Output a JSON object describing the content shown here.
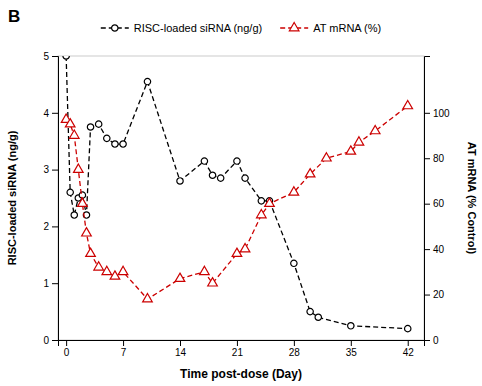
{
  "chart_data": {
    "type": "line",
    "annotations": [
      "B"
    ],
    "xlabel": "Time post-dose (Day)",
    "ylabel": "RISC-loaded siRNA (ng/g)",
    "y2label": "AT mRNA (% Control)",
    "xlim": [
      -1,
      44
    ],
    "ylim": [
      0,
      5
    ],
    "y2lim": [
      0,
      125
    ],
    "xticks": [
      0,
      7,
      14,
      21,
      28,
      35,
      42
    ],
    "yticks": [
      0,
      1,
      2,
      3,
      4,
      5
    ],
    "y2ticks": [
      0,
      20,
      40,
      60,
      80,
      100
    ],
    "grid": false,
    "legend": "top",
    "series": [
      {
        "name": "RISC-loaded siRNA (ng/g)",
        "color": "#000000",
        "marker": "circle",
        "line_style": "dashed",
        "x": [
          0,
          0.5,
          1,
          1.5,
          2,
          2.5,
          3,
          4,
          5,
          6,
          7,
          10,
          14,
          17,
          18,
          19,
          21,
          22,
          24,
          25,
          28,
          30,
          31,
          35,
          42
        ],
        "values": [
          5.0,
          2.6,
          2.2,
          2.5,
          2.55,
          2.2,
          3.75,
          3.8,
          3.55,
          3.45,
          3.45,
          4.55,
          2.8,
          3.15,
          2.9,
          2.85,
          3.15,
          2.85,
          2.45,
          2.45,
          1.35,
          0.5,
          0.4,
          0.25,
          0.2
        ]
      },
      {
        "name": "AT mRNA (%)",
        "color": "#cc0000",
        "marker": "triangle",
        "line_style": "dashed",
        "axis": "y2",
        "x": [
          0,
          0.5,
          1,
          1.5,
          2,
          2.5,
          3,
          4,
          5,
          6,
          7,
          10,
          14,
          17,
          18,
          21,
          22,
          24,
          25,
          28,
          30,
          32,
          35,
          36,
          38,
          42
        ],
        "values": [
          97,
          95,
          90,
          75,
          60,
          47,
          38,
          32,
          30,
          28,
          30,
          18,
          27,
          30,
          25,
          38,
          40,
          55,
          60,
          65,
          73,
          80,
          83,
          87,
          92,
          103
        ]
      }
    ]
  }
}
